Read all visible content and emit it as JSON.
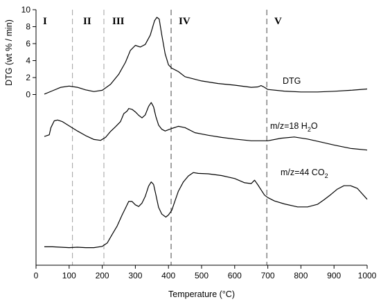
{
  "chart_data": {
    "type": "line",
    "xlabel": "Temperature (°C)",
    "ylabel": "DTG (wt % / min)",
    "xlim": [
      0,
      1000
    ],
    "xticks": [
      "0",
      "100",
      "200",
      "300",
      "400",
      "500",
      "600",
      "700",
      "800",
      "900",
      "1000"
    ],
    "ylim": [
      0,
      10
    ],
    "yticks": [
      "0",
      "2",
      "4",
      "6",
      "8",
      "10"
    ],
    "regions": [
      {
        "label": "I",
        "boundary": 110,
        "color": "#a8a8a8"
      },
      {
        "label": "II",
        "boundary": 205,
        "color": "#a8a8a8"
      },
      {
        "label": "III",
        "boundary": 408,
        "color": "#555555"
      },
      {
        "label": "IV",
        "boundary": 697,
        "color": "#555555"
      },
      {
        "label": "V"
      }
    ],
    "series": [
      {
        "name": "DTG",
        "label_main": "DTG",
        "label_sub": "",
        "x": [
          25,
          50,
          75,
          100,
          125,
          150,
          175,
          200,
          225,
          250,
          270,
          285,
          300,
          315,
          330,
          345,
          358,
          365,
          372,
          380,
          390,
          400,
          410,
          430,
          450,
          500,
          550,
          600,
          650,
          670,
          680,
          690,
          700,
          750,
          800,
          850,
          900,
          950,
          1000
        ],
        "values": [
          0.05,
          0.45,
          0.85,
          1.0,
          0.85,
          0.55,
          0.35,
          0.5,
          1.2,
          2.4,
          3.8,
          5.2,
          5.8,
          5.6,
          5.9,
          7.0,
          8.7,
          9.1,
          8.9,
          7.0,
          4.8,
          3.5,
          3.1,
          2.7,
          2.1,
          1.6,
          1.3,
          1.1,
          0.85,
          0.9,
          1.05,
          0.85,
          0.6,
          0.4,
          0.3,
          0.3,
          0.38,
          0.5,
          0.65
        ]
      },
      {
        "name": "m/z=18 H2O",
        "label_main": "m/z=18 H",
        "label_sub": "2",
        "label_tail": "O",
        "x": [
          25,
          40,
          45,
          55,
          65,
          80,
          100,
          125,
          150,
          175,
          195,
          210,
          225,
          240,
          255,
          265,
          275,
          280,
          290,
          300,
          310,
          320,
          330,
          340,
          348,
          355,
          362,
          370,
          380,
          390,
          400,
          410,
          430,
          450,
          480,
          520,
          560,
          600,
          650,
          700,
          740,
          780,
          820,
          860,
          900,
          950,
          1000
        ],
        "values": [
          -4.95,
          -4.75,
          -3.9,
          -3.1,
          -3.0,
          -3.2,
          -3.7,
          -4.3,
          -4.85,
          -5.3,
          -5.4,
          -5.05,
          -4.35,
          -3.8,
          -3.2,
          -2.25,
          -1.95,
          -1.65,
          -1.75,
          -2.05,
          -2.45,
          -2.75,
          -2.4,
          -1.4,
          -0.95,
          -1.45,
          -2.6,
          -3.6,
          -4.1,
          -4.3,
          -4.15,
          -4.0,
          -3.75,
          -3.9,
          -4.5,
          -4.8,
          -5.05,
          -5.25,
          -5.45,
          -5.45,
          -5.15,
          -5.0,
          -5.25,
          -5.6,
          -5.95,
          -6.35,
          -6.55
        ]
      },
      {
        "name": "m/z=44 CO2",
        "label_main": "m/z=44 CO",
        "label_sub": "2",
        "label_tail": "",
        "x": [
          25,
          50,
          75,
          100,
          125,
          150,
          175,
          200,
          215,
          230,
          245,
          260,
          270,
          280,
          290,
          300,
          310,
          320,
          330,
          340,
          348,
          355,
          362,
          370,
          380,
          392,
          400,
          410,
          420,
          430,
          445,
          460,
          475,
          490,
          520,
          560,
          600,
          630,
          650,
          660,
          670,
          680,
          690,
          700,
          720,
          750,
          790,
          820,
          850,
          870,
          890,
          910,
          930,
          950,
          970,
          1000
        ],
        "values": [
          -17.95,
          -17.95,
          -18.0,
          -18.05,
          -18.0,
          -18.05,
          -18.05,
          -17.9,
          -17.5,
          -16.5,
          -15.5,
          -14.2,
          -13.4,
          -12.6,
          -12.6,
          -13.0,
          -13.2,
          -12.8,
          -12.0,
          -10.8,
          -10.3,
          -10.6,
          -11.8,
          -13.3,
          -14.1,
          -14.45,
          -14.2,
          -13.65,
          -12.5,
          -11.4,
          -10.3,
          -9.6,
          -9.2,
          -9.3,
          -9.35,
          -9.55,
          -9.9,
          -10.4,
          -10.5,
          -10.1,
          -10.65,
          -11.25,
          -11.85,
          -12.15,
          -12.55,
          -12.9,
          -13.25,
          -13.25,
          -12.95,
          -12.4,
          -11.8,
          -11.15,
          -10.75,
          -10.75,
          -11.05,
          -12.35
        ]
      }
    ]
  }
}
